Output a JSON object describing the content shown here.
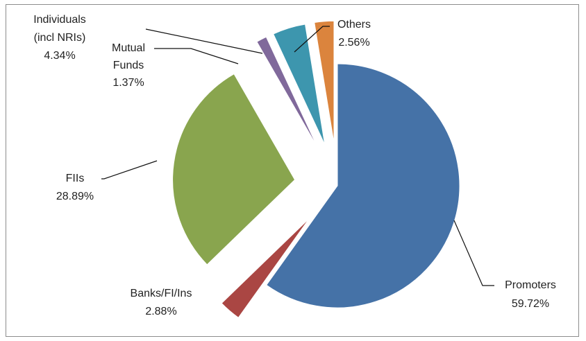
{
  "chart_data": {
    "type": "pie",
    "exploded": true,
    "title": "",
    "slices": [
      {
        "name": "Promoters",
        "value": 59.72,
        "value_label": "59.72%",
        "color": "#4572A7"
      },
      {
        "name": "Banks/FI/Ins",
        "value": 2.88,
        "value_label": "2.88%",
        "color": "#AA4643"
      },
      {
        "name": "FIIs",
        "value": 28.89,
        "value_label": "28.89%",
        "color": "#89A54E"
      },
      {
        "name": "Mutual Funds",
        "value": 1.37,
        "value_label": "1.37%",
        "color": "#80699B"
      },
      {
        "name": "Individuals (incl NRIs)",
        "value": 4.34,
        "value_label": "4.34%",
        "color": "#3D96AE"
      },
      {
        "name": "Others",
        "value": 2.56,
        "value_label": "2.56%",
        "color": "#DB843D"
      }
    ]
  }
}
